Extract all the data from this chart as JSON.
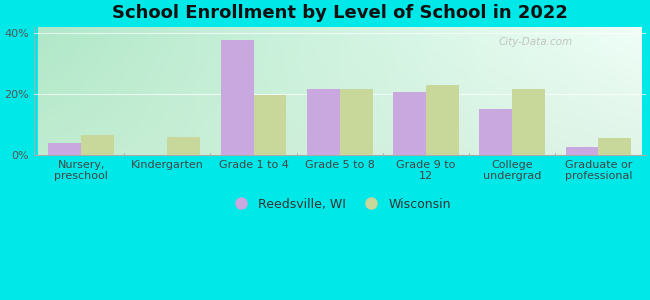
{
  "title": "School Enrollment by Level of School in 2022",
  "categories": [
    "Nursery,\npreschool",
    "Kindergarten",
    "Grade 1 to 4",
    "Grade 5 to 8",
    "Grade 9 to\n12",
    "College\nundergrad",
    "Graduate or\nprofessional"
  ],
  "reedsville": [
    4.0,
    0.0,
    37.5,
    21.5,
    20.5,
    15.0,
    2.5
  ],
  "wisconsin": [
    6.5,
    6.0,
    19.5,
    21.5,
    23.0,
    21.5,
    5.5
  ],
  "bar_color_reedsville": "#c9a8e0",
  "bar_color_wisconsin": "#c8d89a",
  "ylim": [
    0,
    42
  ],
  "yticks": [
    0,
    20,
    40
  ],
  "ytick_labels": [
    "0%",
    "20%",
    "40%"
  ],
  "legend_label_1": "Reedsville, WI",
  "legend_label_2": "Wisconsin",
  "bg_outer": "#00e8e8",
  "title_fontsize": 13,
  "tick_fontsize": 8,
  "legend_fontsize": 9,
  "bar_width": 0.38,
  "watermark": "City-Data.com",
  "bg_plot_topleft": "#b0e8c8",
  "bg_plot_topright": "#e8f8f0",
  "bg_plot_bottom": "#e0f4e8"
}
